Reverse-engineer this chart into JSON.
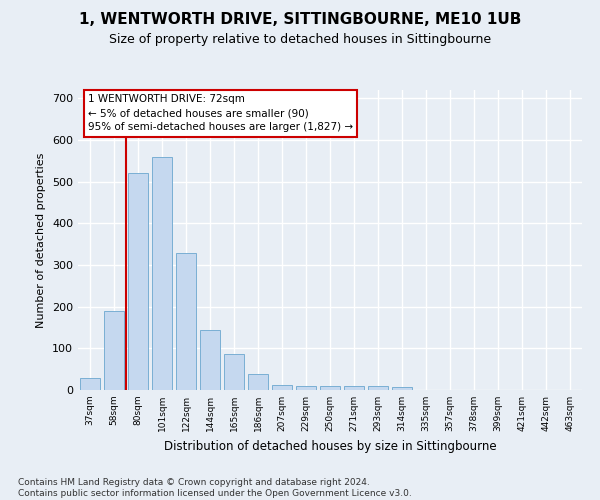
{
  "title": "1, WENTWORTH DRIVE, SITTINGBOURNE, ME10 1UB",
  "subtitle": "Size of property relative to detached houses in Sittingbourne",
  "xlabel": "Distribution of detached houses by size in Sittingbourne",
  "ylabel": "Number of detached properties",
  "categories": [
    "37sqm",
    "58sqm",
    "80sqm",
    "101sqm",
    "122sqm",
    "144sqm",
    "165sqm",
    "186sqm",
    "207sqm",
    "229sqm",
    "250sqm",
    "271sqm",
    "293sqm",
    "314sqm",
    "335sqm",
    "357sqm",
    "378sqm",
    "399sqm",
    "421sqm",
    "442sqm",
    "463sqm"
  ],
  "values": [
    30,
    190,
    520,
    560,
    330,
    145,
    87,
    38,
    12,
    10,
    10,
    10,
    10,
    7,
    0,
    0,
    0,
    0,
    0,
    0,
    0
  ],
  "bar_color": "#c5d8ef",
  "bar_edge_color": "#7aafd4",
  "red_line_x": 1.5,
  "annotation_line1": "1 WENTWORTH DRIVE: 72sqm",
  "annotation_line2": "← 5% of detached houses are smaller (90)",
  "annotation_line3": "95% of semi-detached houses are larger (1,827) →",
  "ylim": [
    0,
    720
  ],
  "yticks": [
    0,
    100,
    200,
    300,
    400,
    500,
    600,
    700
  ],
  "footnote": "Contains HM Land Registry data © Crown copyright and database right 2024.\nContains public sector information licensed under the Open Government Licence v3.0.",
  "bg_color": "#e8eef5",
  "grid_color": "#ffffff",
  "title_fontsize": 11,
  "subtitle_fontsize": 9
}
